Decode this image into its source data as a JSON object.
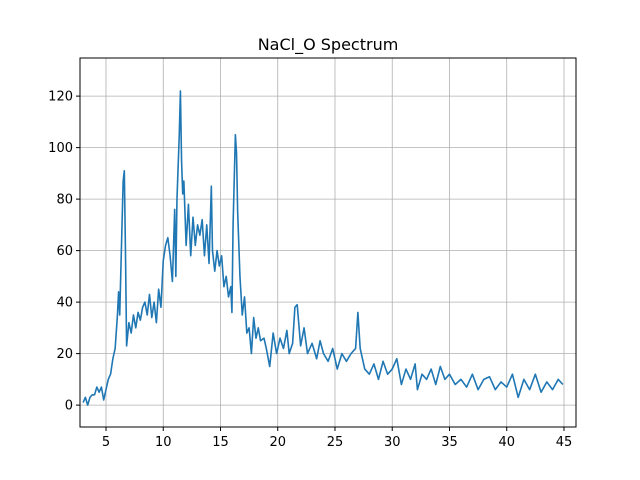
{
  "chart_data": {
    "type": "line",
    "title": "NaCl_O Spectrum",
    "x": [
      3.0,
      3.2,
      3.4,
      3.6,
      3.8,
      4.0,
      4.2,
      4.4,
      4.6,
      4.8,
      5.0,
      5.2,
      5.4,
      5.6,
      5.8,
      6.0,
      6.1,
      6.2,
      6.4,
      6.5,
      6.6,
      6.7,
      6.8,
      7.0,
      7.2,
      7.4,
      7.6,
      7.8,
      8.0,
      8.2,
      8.4,
      8.6,
      8.8,
      9.0,
      9.2,
      9.4,
      9.6,
      9.8,
      10.0,
      10.2,
      10.4,
      10.6,
      10.8,
      11.0,
      11.1,
      11.2,
      11.4,
      11.5,
      11.6,
      11.7,
      11.8,
      12.0,
      12.2,
      12.4,
      12.6,
      12.8,
      13.0,
      13.2,
      13.4,
      13.6,
      13.8,
      14.0,
      14.2,
      14.3,
      14.5,
      14.7,
      14.9,
      15.1,
      15.3,
      15.5,
      15.7,
      15.9,
      16.0,
      16.1,
      16.3,
      16.4,
      16.5,
      16.7,
      16.9,
      17.1,
      17.3,
      17.5,
      17.7,
      17.9,
      18.1,
      18.3,
      18.5,
      18.8,
      19.0,
      19.3,
      19.6,
      19.9,
      20.2,
      20.5,
      20.8,
      21.0,
      21.3,
      21.5,
      21.7,
      22.0,
      22.3,
      22.6,
      23.0,
      23.4,
      23.7,
      24.0,
      24.4,
      24.8,
      25.2,
      25.6,
      26.0,
      26.4,
      26.8,
      27.0,
      27.2,
      27.6,
      28.0,
      28.4,
      28.8,
      29.2,
      29.6,
      30.0,
      30.4,
      30.8,
      31.2,
      31.6,
      32.0,
      32.2,
      32.6,
      33.0,
      33.4,
      33.8,
      34.2,
      34.6,
      35.0,
      35.5,
      36.0,
      36.5,
      37.0,
      37.5,
      38.0,
      38.5,
      39.0,
      39.5,
      40.0,
      40.5,
      41.0,
      41.5,
      42.0,
      42.5,
      43.0,
      43.5,
      44.0,
      44.5,
      44.9
    ],
    "series": [
      {
        "color": "#1f77b4",
        "values": [
          1,
          3,
          0,
          3,
          4,
          4,
          7,
          5,
          7,
          2,
          6,
          10,
          12,
          18,
          22,
          35,
          44,
          35,
          70,
          87,
          91,
          60,
          23,
          32,
          28,
          35,
          30,
          36,
          33,
          38,
          40,
          35,
          43,
          34,
          40,
          32,
          45,
          38,
          56,
          62,
          65,
          58,
          48,
          76,
          50,
          80,
          105,
          122,
          95,
          82,
          87,
          62,
          78,
          58,
          73,
          62,
          70,
          66,
          72,
          58,
          70,
          55,
          85,
          60,
          52,
          60,
          54,
          58,
          46,
          50,
          42,
          46,
          36,
          70,
          105,
          98,
          75,
          50,
          35,
          42,
          28,
          30,
          20,
          34,
          26,
          30,
          25,
          26,
          22,
          15,
          28,
          20,
          26,
          22,
          29,
          20,
          24,
          38,
          39,
          23,
          30,
          20,
          24,
          18,
          25,
          20,
          17,
          22,
          14,
          20,
          17,
          20,
          22,
          36,
          22,
          14,
          12,
          16,
          10,
          17,
          12,
          14,
          18,
          8,
          14,
          10,
          16,
          6,
          12,
          10,
          14,
          8,
          15,
          10,
          12,
          8,
          10,
          7,
          12,
          6,
          10,
          11,
          6,
          9,
          7,
          12,
          3,
          10,
          6,
          12,
          5,
          9,
          6,
          10,
          8
        ]
      }
    ],
    "xlim": [
      2.73,
      46.05
    ],
    "ylim": [
      -8.5,
      134.8
    ],
    "xticks": [
      5,
      10,
      15,
      20,
      25,
      30,
      35,
      40,
      45
    ],
    "yticks": [
      0,
      20,
      40,
      60,
      80,
      100,
      120
    ],
    "grid": true
  }
}
